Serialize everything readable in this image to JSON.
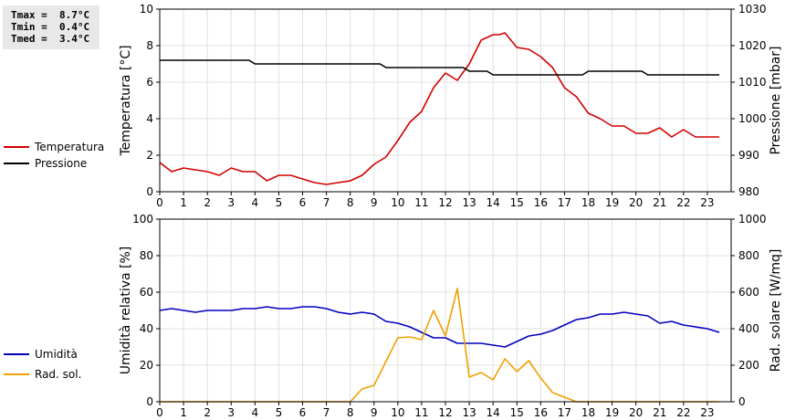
{
  "stats": {
    "tmax": "Tmax =  8.7°C",
    "tmin": "Tmin =  0.4°C",
    "tmed": "Tmed =  3.4°C"
  },
  "legend": {
    "temperatura": "Temperatura",
    "pressione": "Pressione",
    "umidita": "Umidità",
    "radsol": "Rad. sol."
  },
  "colors": {
    "temperatura": "#d40000",
    "pressione": "#000000",
    "umidita": "#0000c0",
    "radsol": "#f0a000",
    "grid": "#e0e0e0"
  },
  "chart_data": [
    {
      "type": "line",
      "xlabel": "",
      "ylabel": "Temperatura [°C]",
      "y2label": "Pressione [mbar]",
      "xlim": [
        0,
        24
      ],
      "ylim": [
        0,
        10
      ],
      "y2lim": [
        980,
        1030
      ],
      "xticks": [
        "0",
        "1",
        "2",
        "3",
        "4",
        "5",
        "6",
        "7",
        "8",
        "9",
        "10",
        "11",
        "12",
        "13",
        "14",
        "15",
        "16",
        "17",
        "18",
        "19",
        "20",
        "21",
        "22",
        "23"
      ],
      "yticks": [
        "0",
        "2",
        "4",
        "6",
        "8",
        "10"
      ],
      "y2ticks": [
        "980",
        "990",
        "1000",
        "1010",
        "1020",
        "1030"
      ],
      "grid": true,
      "series": [
        {
          "name": "Temperatura",
          "axis": "left",
          "x": [
            0,
            0.5,
            1,
            1.5,
            2,
            2.5,
            3,
            3.5,
            4,
            4.5,
            5,
            5.5,
            6,
            6.5,
            7,
            7.5,
            8,
            8.5,
            9,
            9.5,
            10,
            10.5,
            11,
            11.5,
            12,
            12.5,
            13,
            13.5,
            14,
            14.25,
            14.5,
            15,
            15.5,
            16,
            16.5,
            17,
            17.5,
            18,
            18.5,
            19,
            19.5,
            20,
            20.5,
            21,
            21.5,
            22,
            22.5,
            23,
            23.5
          ],
          "y": [
            1.6,
            1.1,
            1.3,
            1.2,
            1.1,
            0.9,
            1.3,
            1.1,
            1.1,
            0.6,
            0.9,
            0.9,
            0.7,
            0.5,
            0.4,
            0.5,
            0.6,
            0.9,
            1.5,
            1.9,
            2.8,
            3.8,
            4.4,
            5.7,
            6.5,
            6.1,
            7.0,
            8.3,
            8.6,
            8.6,
            8.7,
            7.9,
            7.8,
            7.4,
            6.8,
            5.7,
            5.2,
            4.3,
            4.0,
            3.6,
            3.6,
            3.2,
            3.2,
            3.5,
            3.0,
            3.4,
            3.0,
            3.0,
            3.0
          ]
        },
        {
          "name": "Pressione",
          "axis": "right",
          "x": [
            0,
            3.75,
            4,
            9.25,
            9.5,
            12.75,
            13,
            13.75,
            14,
            17.75,
            18,
            20.25,
            20.5,
            23.5
          ],
          "y": [
            1016,
            1016,
            1015,
            1015,
            1014,
            1014,
            1013,
            1013,
            1012,
            1012,
            1013,
            1013,
            1012,
            1012
          ]
        }
      ]
    },
    {
      "type": "line",
      "xlabel": "",
      "ylabel": "Umidità relativa [%]",
      "y2label": "Rad. solare [W/mq]",
      "xlim": [
        0,
        24
      ],
      "ylim": [
        0,
        100
      ],
      "y2lim": [
        0,
        1000
      ],
      "xticks": [
        "0",
        "1",
        "2",
        "3",
        "4",
        "5",
        "6",
        "7",
        "8",
        "9",
        "10",
        "11",
        "12",
        "13",
        "14",
        "15",
        "16",
        "17",
        "18",
        "19",
        "20",
        "21",
        "22",
        "23"
      ],
      "yticks": [
        "0",
        "20",
        "40",
        "60",
        "80",
        "100"
      ],
      "y2ticks": [
        "0",
        "200",
        "400",
        "600",
        "800",
        "1000"
      ],
      "grid": true,
      "series": [
        {
          "name": "Umidità",
          "axis": "left",
          "x": [
            0,
            0.5,
            1,
            1.5,
            2,
            2.5,
            3,
            3.5,
            4,
            4.5,
            5,
            5.5,
            6,
            6.5,
            7,
            7.5,
            8,
            8.5,
            9,
            9.5,
            10,
            10.5,
            11,
            11.5,
            12,
            12.5,
            13,
            13.5,
            14,
            14.5,
            15,
            15.5,
            16,
            16.5,
            17,
            17.5,
            18,
            18.5,
            19,
            19.5,
            20,
            20.5,
            21,
            21.5,
            22,
            22.5,
            23,
            23.5
          ],
          "y": [
            50,
            51,
            50,
            49,
            50,
            50,
            50,
            51,
            51,
            52,
            51,
            51,
            52,
            52,
            51,
            49,
            48,
            49,
            48,
            44,
            43,
            41,
            38,
            35,
            35,
            32,
            32,
            32,
            31,
            30,
            33,
            36,
            37,
            39,
            42,
            45,
            46,
            48,
            48,
            49,
            48,
            47,
            43,
            44,
            42,
            41,
            40,
            38
          ]
        },
        {
          "name": "Rad. sol.",
          "axis": "right",
          "x": [
            0,
            1,
            2,
            3,
            4,
            5,
            6,
            7,
            8,
            8.5,
            9,
            10,
            10.5,
            11,
            11.5,
            12,
            12.5,
            13,
            13.5,
            14,
            14.5,
            15,
            15.5,
            16,
            16.5,
            17,
            17.5,
            18,
            19,
            20,
            21,
            22,
            23,
            23.5
          ],
          "y": [
            0,
            0,
            0,
            0,
            0,
            0,
            0,
            0,
            0,
            70,
            90,
            350,
            355,
            340,
            500,
            360,
            620,
            135,
            160,
            120,
            235,
            165,
            225,
            130,
            50,
            25,
            0,
            0,
            0,
            0,
            0,
            0,
            0,
            0
          ]
        }
      ]
    }
  ]
}
